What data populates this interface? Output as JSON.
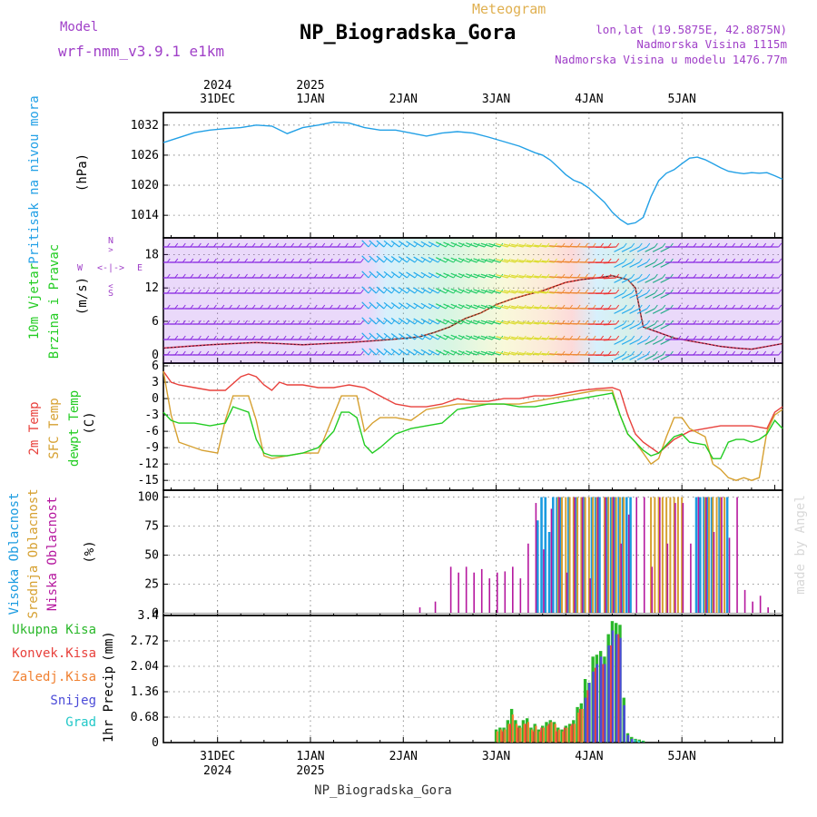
{
  "header": {
    "model_label": "Model",
    "model_name": "wrf-nmm_v3.9.1 e1km",
    "station": "NP_Biogradska_Gora",
    "chart_kind": "Meteogram",
    "coords": "lon,lat (19.5875E, 42.8875N)",
    "altitude": "Nadmorska Visina 1115m",
    "model_altitude": "Nadmorska Visina u modelu 1476.77m"
  },
  "footer": {
    "station": "NP_Biogradska_Gora",
    "credit": "made by Angel"
  },
  "colors": {
    "pressure": "#22a0e6",
    "temp": "#e8413c",
    "sfc_temp": "#d6a030",
    "dewpt": "#22cc22",
    "high_cloud": "#1a9be0",
    "mid_cloud": "#d6a030",
    "low_cloud": "#b5179e",
    "purple_text": "#a040c8",
    "total_precip": "#2ab82a",
    "conv_precip": "#e8413c",
    "freezing": "#f08030",
    "snow": "#4b4bd8",
    "graupel": "#22c8c8"
  },
  "chart_data": [
    {
      "type": "line",
      "panel": "pressure",
      "ylabel_main": "Pritisak na nivou mora",
      "ylabel_unit": "(hPa)",
      "yticks": [
        1014,
        1020,
        1026,
        1032
      ],
      "ylim": [
        1009.5,
        1034.5
      ],
      "x_top_dates": [
        "31DEC",
        "1JAN",
        "2JAN",
        "3JAN",
        "4JAN",
        "5JAN"
      ],
      "x_top_years": [
        "2024",
        "2025"
      ],
      "x_bottom_dates": [
        "31DEC",
        "1JAN",
        "2JAN",
        "3JAN",
        "4JAN",
        "5JAN"
      ],
      "x_bottom_years": [
        "2024",
        "2025"
      ],
      "xlim_hours": [
        -14,
        146
      ],
      "grid": true,
      "series": [
        {
          "x": [
            -14,
            -10,
            -6,
            -2,
            2,
            6,
            10,
            14,
            18,
            22,
            26,
            30,
            34,
            38,
            42,
            46,
            50,
            54,
            58,
            62,
            66,
            70,
            74,
            78,
            82,
            84,
            86,
            88,
            90,
            92,
            94,
            96,
            98,
            100,
            102,
            104,
            106,
            108,
            110,
            112,
            114,
            116,
            118,
            120,
            122,
            124,
            126,
            128,
            130,
            132,
            134,
            136,
            138,
            140,
            142,
            144,
            146
          ],
          "y": [
            1028.5,
            1029.5,
            1030.5,
            1031.0,
            1031.3,
            1031.5,
            1032.0,
            1031.8,
            1030.3,
            1031.5,
            1032.0,
            1032.6,
            1032.4,
            1031.5,
            1031.0,
            1031.0,
            1030.4,
            1029.8,
            1030.4,
            1030.7,
            1030.4,
            1029.6,
            1028.7,
            1027.8,
            1026.5,
            1026.0,
            1025.0,
            1023.6,
            1022.1,
            1021.0,
            1020.4,
            1019.4,
            1018.0,
            1016.6,
            1014.6,
            1013.2,
            1012.2,
            1012.5,
            1013.6,
            1017.7,
            1020.9,
            1022.4,
            1023.1,
            1024.3,
            1025.4,
            1025.6,
            1025.1,
            1024.3,
            1023.5,
            1022.8,
            1022.5,
            1022.3,
            1022.5,
            1022.4,
            1022.5,
            1021.9,
            1021.2
          ]
        }
      ]
    },
    {
      "type": "line",
      "panel": "wind",
      "ylabel_main": "10m Vjetar",
      "ylabel_sub": "Brzina i Pravac",
      "ylabel_unit": "(m/s)",
      "compass_labels": [
        "N",
        "W",
        "E",
        "S"
      ],
      "yticks": [
        0,
        6,
        12,
        18
      ],
      "ylim": [
        -1.5,
        21
      ],
      "series": [
        {
          "name": "wind speed",
          "x": [
            -14,
            -8,
            -2,
            4,
            10,
            16,
            22,
            28,
            34,
            40,
            46,
            52,
            56,
            60,
            64,
            68,
            72,
            76,
            80,
            84,
            88,
            90,
            94,
            98,
            102,
            106,
            108,
            110,
            114,
            118,
            122,
            126,
            130,
            134,
            138,
            142,
            146
          ],
          "y": [
            1.2,
            1.5,
            1.8,
            2.0,
            2.2,
            2.0,
            1.8,
            2.0,
            2.2,
            2.5,
            2.8,
            3.2,
            4.0,
            5.0,
            6.5,
            7.5,
            9.0,
            10.0,
            10.8,
            11.5,
            12.5,
            13.0,
            13.5,
            13.8,
            14.2,
            13.5,
            12.0,
            5.0,
            4.0,
            3.0,
            2.5,
            2.0,
            1.5,
            1.2,
            1.0,
            1.5,
            2.0
          ]
        }
      ]
    },
    {
      "type": "line",
      "panel": "temperature",
      "ylabel_main": "2m Temp",
      "ylabel_sfc": "SFC Temp",
      "ylabel_dew": "dewpt Temp",
      "ylabel_unit": "(C)",
      "yticks": [
        6,
        3,
        0,
        -3,
        -6,
        -9,
        -12,
        -15
      ],
      "ylim": [
        -16.8,
        6.5
      ],
      "series": [
        {
          "x": [
            -14,
            -12,
            -10,
            -6,
            -2,
            2,
            6,
            8,
            10,
            12,
            14,
            16,
            18,
            22,
            26,
            30,
            34,
            38,
            42,
            46,
            50,
            54,
            58,
            62,
            66,
            70,
            74,
            78,
            82,
            86,
            90,
            94,
            98,
            102,
            104,
            106,
            108,
            110,
            112,
            114,
            118,
            122,
            126,
            130,
            134,
            138,
            142,
            144,
            146
          ],
          "y": [
            5.0,
            3.0,
            2.5,
            2.0,
            1.5,
            1.5,
            4.0,
            4.5,
            4.0,
            2.5,
            1.5,
            3.0,
            2.5,
            2.5,
            2.0,
            2.0,
            2.5,
            2.0,
            0.5,
            -1.0,
            -1.5,
            -1.5,
            -1.0,
            0.0,
            -0.5,
            -0.5,
            0.0,
            0.0,
            0.5,
            0.5,
            1.0,
            1.5,
            1.8,
            2.0,
            1.5,
            -3.0,
            -6.5,
            -8.0,
            -9.0,
            -10.0,
            -7.5,
            -6.0,
            -5.5,
            -5.0,
            -5.0,
            -5.0,
            -5.5,
            -2.5,
            -1.5
          ]
        },
        {
          "x": [
            -14,
            -12,
            -10,
            -8,
            -4,
            0,
            2,
            4,
            6,
            8,
            10,
            12,
            14,
            18,
            22,
            26,
            30,
            32,
            34,
            36,
            38,
            40,
            42,
            46,
            50,
            54,
            58,
            62,
            66,
            70,
            74,
            78,
            82,
            86,
            90,
            94,
            98,
            102,
            104,
            106,
            108,
            110,
            112,
            114,
            116,
            118,
            120,
            122,
            126,
            128,
            130,
            132,
            134,
            136,
            138,
            140,
            142,
            144,
            146
          ],
          "y": [
            5.0,
            -3.0,
            -8.0,
            -8.5,
            -9.5,
            -10.0,
            -4.0,
            0.5,
            0.5,
            0.5,
            -4.0,
            -10.5,
            -11.0,
            -10.5,
            -10.0,
            -10.0,
            -3.0,
            0.5,
            0.5,
            0.5,
            -6.0,
            -4.5,
            -3.5,
            -3.5,
            -4.0,
            -2.0,
            -1.5,
            -1.0,
            -1.0,
            -1.0,
            -1.0,
            -1.0,
            -0.5,
            0.0,
            0.5,
            1.0,
            1.5,
            1.5,
            -3.0,
            -6.5,
            -8.0,
            -10.0,
            -12.0,
            -11.0,
            -7.0,
            -3.5,
            -3.5,
            -5.5,
            -7.0,
            -12.0,
            -13.0,
            -14.5,
            -15.0,
            -14.5,
            -15.0,
            -14.5,
            -6.0,
            -3.0,
            -2.0
          ]
        },
        {
          "x": [
            -14,
            -12,
            -10,
            -6,
            -2,
            2,
            4,
            6,
            8,
            10,
            12,
            14,
            18,
            22,
            26,
            30,
            32,
            34,
            36,
            38,
            40,
            42,
            46,
            50,
            54,
            58,
            62,
            66,
            70,
            74,
            78,
            82,
            86,
            90,
            94,
            98,
            102,
            104,
            106,
            108,
            110,
            112,
            114,
            118,
            120,
            122,
            126,
            128,
            130,
            132,
            134,
            136,
            138,
            140,
            142,
            144,
            146
          ],
          "y": [
            -2.5,
            -4.0,
            -4.5,
            -4.5,
            -5.0,
            -4.5,
            -1.5,
            -2.0,
            -2.5,
            -7.5,
            -10.0,
            -10.5,
            -10.5,
            -10.0,
            -9.0,
            -6.0,
            -2.5,
            -2.5,
            -3.5,
            -8.5,
            -10.0,
            -9.0,
            -6.5,
            -5.5,
            -5.0,
            -4.5,
            -2.0,
            -1.5,
            -1.0,
            -1.0,
            -1.5,
            -1.5,
            -1.0,
            -0.5,
            0.0,
            0.5,
            1.0,
            -3.0,
            -6.5,
            -8.0,
            -9.5,
            -10.5,
            -10.0,
            -7.0,
            -6.5,
            -8.0,
            -8.5,
            -11.0,
            -11.0,
            -8.0,
            -7.5,
            -7.5,
            -8.0,
            -7.5,
            -6.5,
            -4.0,
            -5.5
          ]
        }
      ]
    },
    {
      "type": "bar",
      "panel": "cloud",
      "ylabel_high": "Visoka Oblacnost",
      "ylabel_mid": "Srednja Oblacnost",
      "ylabel_low": "Niska Oblacnost",
      "ylabel_unit": "(%)",
      "yticks": [
        0,
        25,
        50,
        75,
        100
      ],
      "ylim": [
        -2,
        106
      ],
      "series": [
        {
          "x": [
            83,
            84,
            85,
            86,
            87,
            88,
            89,
            91,
            93,
            95,
            97,
            98,
            99,
            101,
            102,
            103,
            104,
            105,
            106,
            107,
            124,
            125,
            126,
            127,
            128,
            130,
            132
          ],
          "y": [
            80,
            100,
            100,
            70,
            100,
            100,
            100,
            100,
            100,
            100,
            100,
            100,
            100,
            100,
            100,
            100,
            100,
            100,
            100,
            100,
            100,
            100,
            100,
            100,
            100,
            100,
            100
          ]
        },
        {
          "x": [
            88,
            89,
            90,
            91,
            92,
            93,
            94,
            95,
            96,
            97,
            98,
            100,
            101,
            102,
            103,
            104,
            105,
            112,
            113,
            114,
            115,
            116,
            117,
            118,
            119,
            120,
            126,
            127,
            128,
            129,
            130,
            131
          ],
          "y": [
            100,
            100,
            100,
            100,
            100,
            100,
            100,
            100,
            100,
            100,
            100,
            100,
            100,
            100,
            100,
            100,
            100,
            100,
            100,
            100,
            100,
            100,
            100,
            100,
            100,
            100,
            100,
            100,
            100,
            100,
            100,
            100
          ]
        },
        {
          "x": [
            52,
            56,
            60,
            62,
            64,
            66,
            68,
            70,
            72,
            74,
            76,
            78,
            80,
            82,
            84,
            86,
            88,
            90,
            92,
            94,
            96,
            98,
            100,
            102,
            104,
            106,
            108,
            110,
            112,
            114,
            116,
            118,
            120,
            122,
            124,
            126,
            128,
            130,
            132,
            134,
            136,
            138,
            140,
            142
          ],
          "y": [
            5,
            10,
            40,
            35,
            40,
            35,
            38,
            30,
            35,
            36,
            40,
            30,
            60,
            95,
            55,
            90,
            100,
            35,
            100,
            100,
            30,
            100,
            100,
            100,
            60,
            85,
            100,
            100,
            40,
            100,
            60,
            95,
            95,
            60,
            100,
            100,
            70,
            100,
            65,
            100,
            20,
            10,
            15,
            5
          ]
        }
      ]
    },
    {
      "type": "bar",
      "panel": "precip",
      "ylabel_main": "1hr Precip",
      "ylabel_unit": "(mm)",
      "legend": [
        "Ukupna Kisa",
        "Konvek.Kisa",
        "Zaledj.Kisa",
        "Snijeg",
        "Grad"
      ],
      "yticks": [
        "0",
        "0.68",
        "1.36",
        "2.04",
        "2.72",
        "3.4"
      ],
      "ylim": [
        0,
        3.4
      ],
      "series": [
        {
          "x": [
            72,
            73,
            74,
            75,
            76,
            77,
            78,
            79,
            80,
            81,
            82,
            83,
            84,
            85,
            86,
            87,
            88,
            89,
            90,
            91,
            92,
            93,
            94,
            95,
            96,
            97,
            98,
            99,
            100,
            101,
            102,
            103,
            104,
            105,
            106,
            107,
            108,
            109,
            110
          ],
          "y": [
            0.35,
            0.4,
            0.4,
            0.6,
            0.9,
            0.6,
            0.45,
            0.6,
            0.65,
            0.4,
            0.5,
            0.35,
            0.45,
            0.55,
            0.6,
            0.55,
            0.4,
            0.35,
            0.45,
            0.5,
            0.6,
            0.95,
            1.05,
            1.7,
            1.6,
            2.3,
            2.35,
            2.45,
            2.3,
            2.9,
            3.25,
            3.2,
            3.15,
            1.2,
            0.25,
            0.15,
            0.1,
            0.08,
            0.05
          ]
        },
        {
          "x": [
            74,
            76,
            78,
            80,
            82,
            84,
            86,
            88,
            90,
            92,
            94,
            96,
            98,
            100,
            102,
            104
          ],
          "y": [
            0.3,
            0.5,
            0.4,
            0.5,
            0.3,
            0.4,
            0.5,
            0.3,
            0.4,
            0.5,
            0.9,
            1.4,
            2.0,
            2.1,
            2.6,
            2.9
          ]
        },
        {
          "x": [
            72,
            73,
            74,
            75,
            76,
            77,
            78,
            79,
            80,
            81,
            82,
            83,
            84,
            85,
            86,
            87,
            88,
            89,
            90,
            91,
            92,
            93,
            94
          ],
          "y": [
            0.3,
            0.35,
            0.35,
            0.5,
            0.75,
            0.5,
            0.4,
            0.5,
            0.55,
            0.35,
            0.45,
            0.3,
            0.4,
            0.45,
            0.55,
            0.5,
            0.35,
            0.3,
            0.4,
            0.45,
            0.5,
            0.8,
            0.9
          ]
        },
        {
          "x": [
            95,
            96,
            97,
            98,
            99,
            100,
            101,
            102,
            103,
            104,
            105,
            106,
            107
          ],
          "y": [
            1.2,
            1.6,
            1.9,
            2.1,
            2.3,
            2.1,
            2.6,
            3.0,
            2.9,
            2.8,
            1.0,
            0.2,
            0.1
          ]
        },
        {
          "x": [
            108,
            109,
            110
          ],
          "y": [
            0.08,
            0.05,
            0.03
          ]
        }
      ]
    }
  ]
}
